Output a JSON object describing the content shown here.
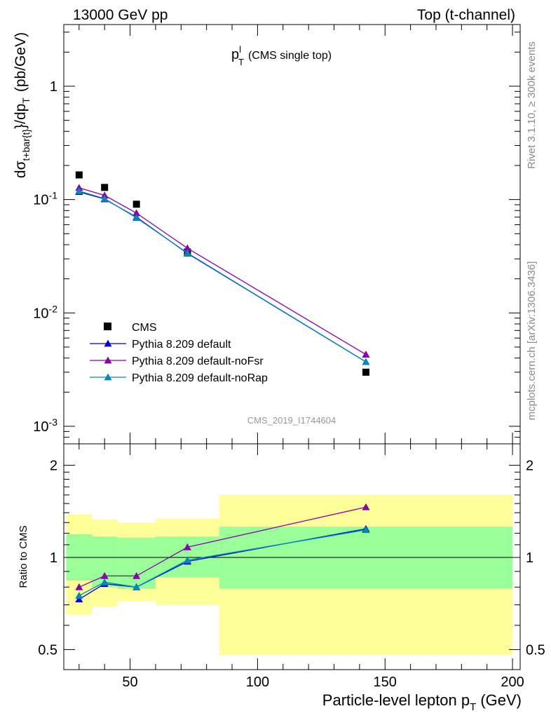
{
  "header": {
    "left": "13000 GeV pp",
    "right": "Top (t-channel)"
  },
  "side_labels": {
    "rivet": "Rivet 3.1.10, ≥ 300k events",
    "mcplots": "mcplots.cern.ch [arXiv:1306.3436]"
  },
  "chart_data": [
    {
      "type": "scatter",
      "panel": "main",
      "title": "p_T^l (CMS single top)",
      "title_main": "p",
      "title_sub": "T",
      "title_sup": "l",
      "title_rest": "(CMS single top)",
      "watermark": "CMS_2019_I1744604",
      "ylabel": "dσ_{t+bar{t}}/dp_T (pb/GeV)",
      "yscale": "log",
      "ylim": [
        0.0007,
        3.5
      ],
      "xlim": [
        24,
        203
      ],
      "y_ticks": [
        {
          "value": 1,
          "label": "1"
        },
        {
          "value": 0.1,
          "label": "10^-1"
        },
        {
          "value": 0.01,
          "label": "10^-2"
        },
        {
          "value": 0.001,
          "label": "10^-3"
        }
      ],
      "legend_position": "bottom-left",
      "series": [
        {
          "name": "CMS",
          "color": "#000000",
          "marker": "square",
          "line": false,
          "x": [
            30,
            40,
            52.5,
            72.5,
            142.5
          ],
          "y": [
            0.165,
            0.128,
            0.091,
            0.0345,
            0.003
          ]
        },
        {
          "name": "Pythia 8.209 default",
          "color": "#0000cc",
          "marker": "triangle",
          "line": true,
          "x": [
            30,
            40,
            52.5,
            72.5,
            142.5
          ],
          "y": [
            0.117,
            0.101,
            0.07,
            0.0335,
            0.0037
          ]
        },
        {
          "name": "Pythia 8.209 default-noFsr",
          "color": "#8800aa",
          "marker": "triangle",
          "line": true,
          "x": [
            30,
            40,
            52.5,
            72.5,
            142.5
          ],
          "y": [
            0.127,
            0.109,
            0.076,
            0.0372,
            0.0043
          ]
        },
        {
          "name": "Pythia 8.209 default-noRap",
          "color": "#0088bb",
          "marker": "triangle",
          "line": true,
          "x": [
            30,
            40,
            52.5,
            72.5,
            142.5
          ],
          "y": [
            0.119,
            0.102,
            0.069,
            0.0338,
            0.0037
          ]
        }
      ]
    },
    {
      "type": "line",
      "panel": "ratio",
      "ylabel": "Ratio to CMS",
      "xlabel": "Particle-level lepton p_T (GeV)",
      "xlabel_main": "Particle-level lepton p",
      "xlabel_sub": "T",
      "xlabel_rest": "(GeV)",
      "yscale": "log",
      "ylim": [
        0.43,
        2.35
      ],
      "xlim": [
        24,
        203
      ],
      "x_ticks": [
        50,
        100,
        150,
        200
      ],
      "y_ticks": [
        0.5,
        1,
        2
      ],
      "reference": 1,
      "bands": {
        "bins": [
          25,
          35,
          45,
          60,
          85,
          200
        ],
        "outer_low": [
          0.65,
          0.69,
          0.72,
          0.7,
          0.48
        ],
        "outer_high": [
          1.38,
          1.33,
          1.3,
          1.34,
          1.6
        ],
        "inner_low": [
          0.84,
          0.8,
          0.79,
          0.86,
          0.79
        ],
        "inner_high": [
          1.19,
          1.17,
          1.16,
          1.17,
          1.26
        ],
        "outer_color": "#ffff99",
        "inner_color": "#99ff99"
      },
      "series": [
        {
          "name": "Pythia 8.209 default",
          "color": "#0000cc",
          "x": [
            30,
            40,
            52.5,
            72.5,
            142.5
          ],
          "y": [
            0.73,
            0.82,
            0.8,
            0.97,
            1.24
          ]
        },
        {
          "name": "Pythia 8.209 default-noFsr",
          "color": "#8800aa",
          "x": [
            30,
            40,
            52.5,
            72.5,
            142.5
          ],
          "y": [
            0.8,
            0.87,
            0.87,
            1.08,
            1.46
          ]
        },
        {
          "name": "Pythia 8.209 default-noRap",
          "color": "#0088bb",
          "x": [
            30,
            40,
            52.5,
            72.5,
            142.5
          ],
          "y": [
            0.75,
            0.83,
            0.8,
            0.98,
            1.23
          ]
        }
      ]
    }
  ]
}
